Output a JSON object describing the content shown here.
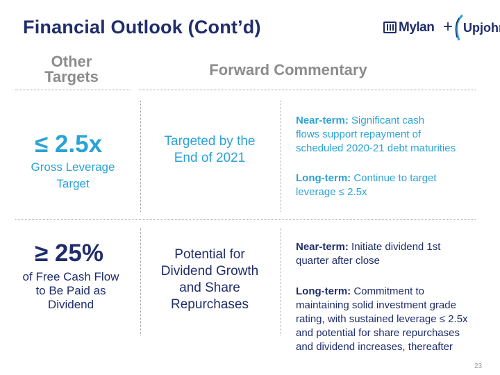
{
  "title": "Financial Outlook (Cont’d)",
  "logo": {
    "mylan": "Mylan",
    "plus": "+",
    "upjohn": "Upjohn"
  },
  "headers": {
    "other_line1": "Other",
    "other_line2": "Targets",
    "forward": "Forward Commentary"
  },
  "row1": {
    "metric": "≤ 2.5x",
    "metric_sub_line1": "Gross Leverage",
    "metric_sub_line2": "Target",
    "middle_line1": "Targeted by the",
    "middle_line2": "End of 2021",
    "near_label": "Near-term:",
    "near_text_1": " Significant cash",
    "near_text_2": "flows support repayment of",
    "near_text_3": "scheduled 2020-21 debt maturities",
    "long_label": "Long-term:",
    "long_text_1": " Continue to target",
    "long_text_2": "leverage ≤ 2.5x"
  },
  "row2": {
    "metric": "≥ 25%",
    "metric_sub_line1": "of Free Cash Flow",
    "metric_sub_line2": "to Be Paid as",
    "metric_sub_line3": "Dividend",
    "middle_line1": "Potential for",
    "middle_line2": "Dividend Growth",
    "middle_line3": "and Share",
    "middle_line4": "Repurchases",
    "near_label": "Near-term:",
    "near_text_1": " Initiate dividend 1st",
    "near_text_2": "quarter after close",
    "long_label": "Long-term:",
    "long_text_1": " Commitment to",
    "long_text_2": "maintaining solid investment grade",
    "long_text_3": "rating, with sustained leverage ≤ 2.5x",
    "long_text_4": "and potential for share repurchases",
    "long_text_5": "and dividend increases, thereafter"
  },
  "page_number": "23",
  "colors": {
    "navy": "#1f2d6b",
    "blue": "#2aa3d6",
    "gray": "#8c8c8c"
  }
}
